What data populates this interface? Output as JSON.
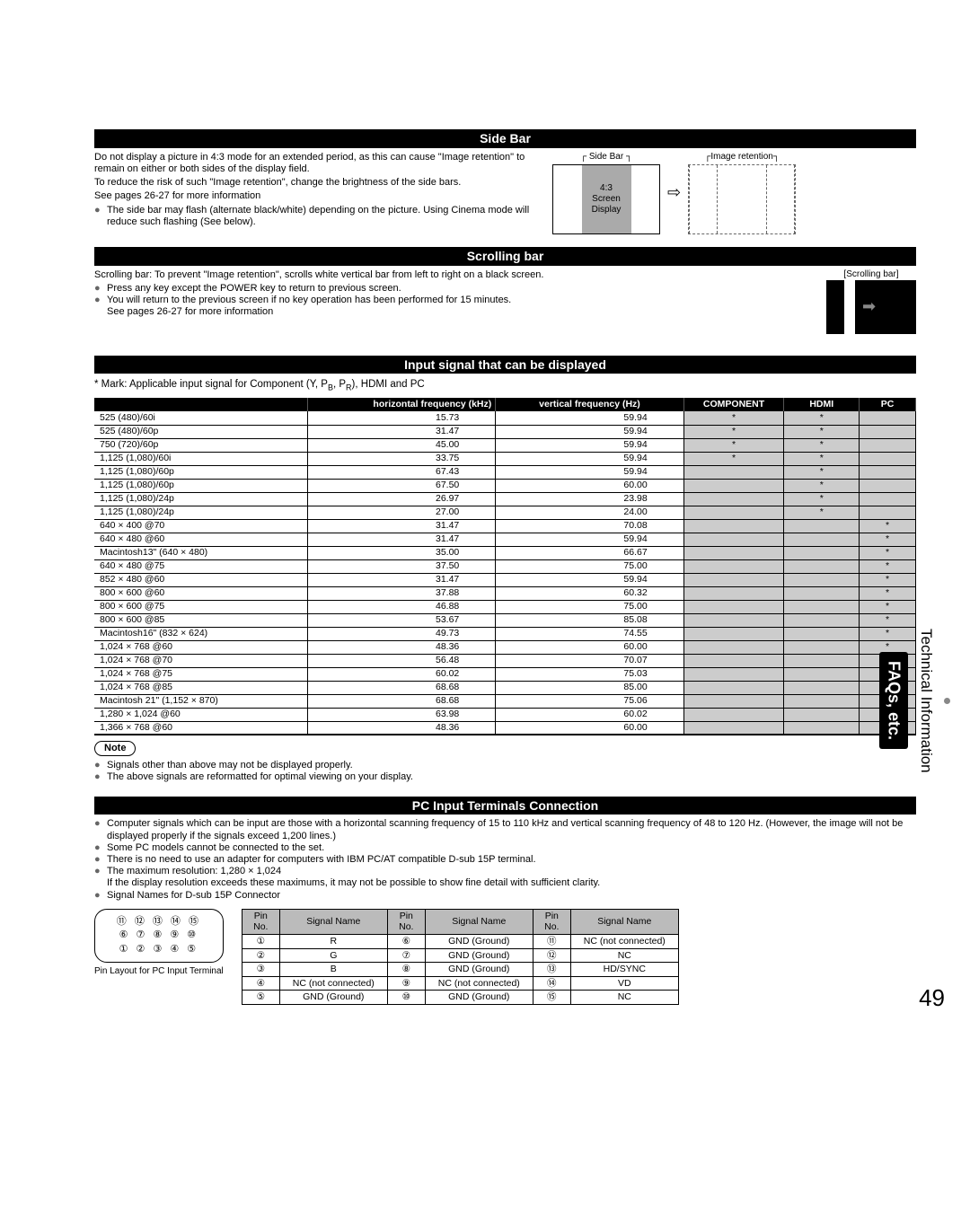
{
  "sections": {
    "sidebar": {
      "title": "Side Bar",
      "p1": "Do not display a picture in 4:3 mode for an extended period, as this can cause \"Image retention\" to remain on either or both sides of the display field.",
      "p2": "To reduce the risk of such \"Image retention\", change the brightness of the side bars.",
      "p3": "See pages 26-27 for more information",
      "b1": "The side bar may flash (alternate black/white) depending on the picture. Using Cinema mode will reduce such flashing (See below).",
      "label_sidebar": "Side Bar",
      "label_43": "4:3",
      "label_screen": "Screen",
      "label_display": "Display",
      "label_retention": "Image retention"
    },
    "scrolling": {
      "title": "Scrolling bar",
      "p1": "Scrolling bar: To prevent \"Image retention\", scrolls white vertical bar from left to right on a black screen.",
      "b1": "Press any key except the POWER key to return to previous screen.",
      "b2": "You will return to the previous screen if no key operation has been performed for 15 minutes.",
      "b2b": "See pages 26-27 for more information",
      "label_box": "[Scrolling bar]"
    },
    "input": {
      "title": "Input signal that can be displayed",
      "mark_note_a": "* Mark: Applicable input signal for Component (Y, P",
      "mark_note_b": ", P",
      "mark_note_c": "), HDMI and  PC",
      "headers": [
        "",
        "horizontal frequency (kHz)",
        "vertical frequency (Hz)",
        "COMPONENT",
        "HDMI",
        "PC"
      ],
      "rows": [
        [
          "525 (480)/60i",
          "15.73",
          "59.94",
          "*",
          "*",
          ""
        ],
        [
          "525 (480)/60p",
          "31.47",
          "59.94",
          "*",
          "*",
          ""
        ],
        [
          "750 (720)/60p",
          "45.00",
          "59.94",
          "*",
          "*",
          ""
        ],
        [
          "1,125 (1,080)/60i",
          "33.75",
          "59.94",
          "*",
          "*",
          ""
        ],
        [
          "1,125 (1,080)/60p",
          "67.43",
          "59.94",
          "",
          "*",
          ""
        ],
        [
          "1,125 (1,080)/60p",
          "67.50",
          "60.00",
          "",
          "*",
          ""
        ],
        [
          "1,125 (1,080)/24p",
          "26.97",
          "23.98",
          "",
          "*",
          ""
        ],
        [
          "1,125 (1,080)/24p",
          "27.00",
          "24.00",
          "",
          "*",
          ""
        ],
        [
          "640 × 400 @70",
          "31.47",
          "70.08",
          "",
          "",
          "*"
        ],
        [
          "640 × 480 @60",
          "31.47",
          "59.94",
          "",
          "",
          "*"
        ],
        [
          "Macintosh13\" (640 × 480)",
          "35.00",
          "66.67",
          "",
          "",
          "*"
        ],
        [
          "640 × 480 @75",
          "37.50",
          "75.00",
          "",
          "",
          "*"
        ],
        [
          "852 × 480 @60",
          "31.47",
          "59.94",
          "",
          "",
          "*"
        ],
        [
          "800 × 600 @60",
          "37.88",
          "60.32",
          "",
          "",
          "*"
        ],
        [
          "800 × 600 @75",
          "46.88",
          "75.00",
          "",
          "",
          "*"
        ],
        [
          "800 × 600 @85",
          "53.67",
          "85.08",
          "",
          "",
          "*"
        ],
        [
          "Macintosh16\" (832 × 624)",
          "49.73",
          "74.55",
          "",
          "",
          "*"
        ],
        [
          "1,024 × 768 @60",
          "48.36",
          "60.00",
          "",
          "",
          "*"
        ],
        [
          "1,024 × 768 @70",
          "56.48",
          "70.07",
          "",
          "",
          "*"
        ],
        [
          "1,024 × 768 @75",
          "60.02",
          "75.03",
          "",
          "",
          "*"
        ],
        [
          "1,024 × 768 @85",
          "68.68",
          "85.00",
          "",
          "",
          "*"
        ],
        [
          "Macintosh 21\" (1,152 × 870)",
          "68.68",
          "75.06",
          "",
          "",
          "*"
        ],
        [
          "1,280 × 1,024 @60",
          "63.98",
          "60.02",
          "",
          "",
          "*"
        ],
        [
          "1,366 × 768 @60",
          "48.36",
          "60.00",
          "",
          "",
          "*"
        ]
      ],
      "note_label": "Note",
      "note1": "Signals other than above may not be displayed properly.",
      "note2": "The above signals are reformatted for optimal viewing on your display."
    },
    "pc": {
      "title": "PC Input Terminals Connection",
      "b1": "Computer signals which can be input are those with a horizontal scanning frequency of 15 to 110 kHz and vertical scanning frequency of 48 to 120 Hz. (However, the image will not be displayed properly if the signals exceed 1,200 lines.)",
      "b2": "Some PC models cannot be connected to the set.",
      "b3": "There is no need to use an adapter for computers with IBM PC/AT compatible D-sub 15P terminal.",
      "b4": "The maximum resolution: 1,280 × 1,024",
      "b4b": "If the display resolution exceeds these maximums, it may not be possible to show fine detail with sufficient clarity.",
      "b5": "Signal Names for D-sub 15P Connector",
      "connector_caption": "Pin Layout for PC Input Terminal",
      "pin_headers": [
        "Pin No.",
        "Signal Name",
        "Pin No.",
        "Signal Name",
        "Pin No.",
        "Signal Name"
      ],
      "pin_rows": [
        [
          "①",
          "R",
          "⑥",
          "GND (Ground)",
          "⑪",
          "NC (not connected)"
        ],
        [
          "②",
          "G",
          "⑦",
          "GND (Ground)",
          "⑫",
          "NC"
        ],
        [
          "③",
          "B",
          "⑧",
          "GND (Ground)",
          "⑬",
          "HD/SYNC"
        ],
        [
          "④",
          "NC (not connected)",
          "⑨",
          "NC (not connected)",
          "⑭",
          "VD"
        ],
        [
          "⑤",
          "GND (Ground)",
          "⑩",
          "GND (Ground)",
          "⑮",
          "NC"
        ]
      ],
      "connector_row1": "⑪ ⑫ ⑬ ⑭ ⑮",
      "connector_row2": "⑥ ⑦ ⑧ ⑨ ⑩",
      "connector_row3": "① ② ③ ④ ⑤"
    }
  },
  "sidetab": {
    "tech": "Technical Information",
    "faq": "FAQs, etc."
  },
  "page": "49"
}
